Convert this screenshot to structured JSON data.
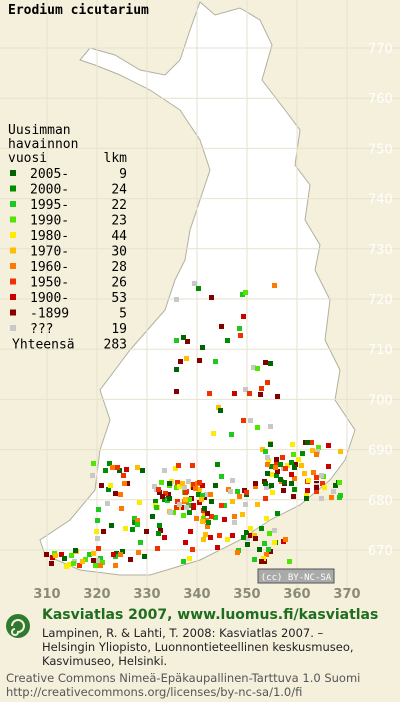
{
  "title": "Erodium cicutarium",
  "grid": {
    "y_labels": [
      770,
      760,
      750,
      740,
      730,
      720,
      710,
      700,
      690,
      680,
      670
    ],
    "x_labels": [
      310,
      320,
      330,
      340,
      350,
      360,
      370
    ]
  },
  "legend": {
    "heading": [
      "Uusimman",
      "havainnon",
      "vuosi"
    ],
    "count_heading": "lkm",
    "entries": [
      {
        "label": "2005-",
        "count": 9,
        "color": "#006400"
      },
      {
        "label": "2000-",
        "count": 24,
        "color": "#008c00"
      },
      {
        "label": "1995-",
        "count": 22,
        "color": "#1ec81e"
      },
      {
        "label": "1990-",
        "count": 23,
        "color": "#50e600"
      },
      {
        "label": "1980-",
        "count": 44,
        "color": "#ffeb00"
      },
      {
        "label": "1970-",
        "count": 30,
        "color": "#ffbe00"
      },
      {
        "label": "1960-",
        "count": 28,
        "color": "#ff7800"
      },
      {
        "label": "1950-",
        "count": 26,
        "color": "#f03200"
      },
      {
        "label": "1900-",
        "count": 53,
        "color": "#c80000"
      },
      {
        "label": "-1899",
        "count": 5,
        "color": "#820000"
      },
      {
        "label": "???",
        "count": 19,
        "color": "#c8c8c8"
      }
    ],
    "total": {
      "label": "Yhteensä",
      "count": 283
    }
  },
  "license_badge": "(cc) BY-NC-SA",
  "footer": {
    "heading": "Kasviatlas 2007, www.luomus.fi/kasviatlas",
    "citation": [
      "Lampinen, R. & Lahti, T. 2008: Kasviatlas 2007. –",
      "Helsingin Yliopisto, Luonnontieteellinen keskusmuseo,",
      "Kasvimuseo, Helsinki."
    ],
    "license": [
      "Creative Commons Nimeä-Epäkaupallinen-Tarttuva 1.0 Suomi",
      "http://creativecommons.org/licenses/by-nc-sa/1.0/fi"
    ]
  }
}
